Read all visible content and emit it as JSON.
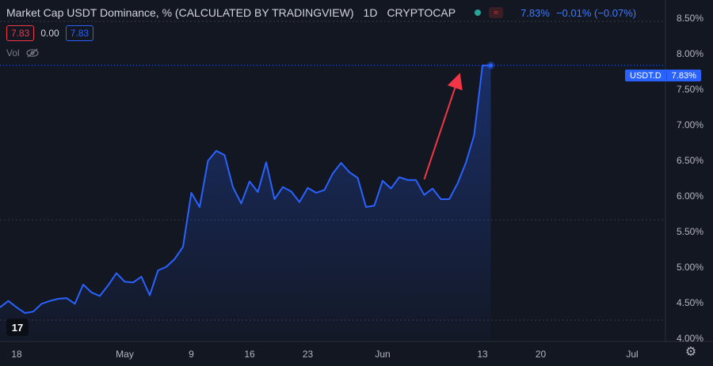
{
  "header": {
    "title": "Market Cap USDT Dominance, % (CALCULATED BY TRADINGVIEW)",
    "interval": "1D",
    "exchange": "CRYPTOCAP",
    "last_value": "7.83%",
    "change": "−0.01% (−0.07%)"
  },
  "ohlc_row": {
    "red_value": "7.83",
    "zero_value": "0.00",
    "blue_value": "7.83"
  },
  "volume_label": "Vol",
  "price_tag": {
    "symbol": "USDT.D",
    "value": "7.83%"
  },
  "colors": {
    "background": "#131722",
    "line": "#2962ff",
    "arrow": "#f23645",
    "grid_dots": "#363a45",
    "price_line": "#2962ff"
  },
  "icons": [
    "eye-slash-icon",
    "gear-icon",
    "tradingview-logo-icon",
    "flag-icon"
  ],
  "chart_data": {
    "type": "area",
    "title": "Market Cap USDT Dominance, % (CALCULATED BY TRADINGVIEW)",
    "xlabel": "",
    "ylabel": "",
    "y_unit": "%",
    "ylim": [
      3.95,
      8.75
    ],
    "y_ticks": [
      "4.00%",
      "4.50%",
      "5.00%",
      "5.50%",
      "6.00%",
      "6.50%",
      "7.00%",
      "7.50%",
      "8.00%",
      "8.50%"
    ],
    "x_ticks": [
      {
        "label": "18",
        "date": "2022-04-18"
      },
      {
        "label": "May",
        "date": "2022-05-01"
      },
      {
        "label": "9",
        "date": "2022-05-09"
      },
      {
        "label": "16",
        "date": "2022-05-16"
      },
      {
        "label": "23",
        "date": "2022-05-23"
      },
      {
        "label": "Jun",
        "date": "2022-06-01"
      },
      {
        "label": "13",
        "date": "2022-06-13"
      },
      {
        "label": "20",
        "date": "2022-06-20"
      },
      {
        "label": "Jul",
        "date": "2022-07-01"
      }
    ],
    "x_range": [
      "2022-04-16",
      "2022-07-05"
    ],
    "series": [
      {
        "x": [
          "2022-04-16",
          "2022-04-17",
          "2022-04-18",
          "2022-04-19",
          "2022-04-20",
          "2022-04-21",
          "2022-04-22",
          "2022-04-23",
          "2022-04-24",
          "2022-04-25",
          "2022-04-26",
          "2022-04-27",
          "2022-04-28",
          "2022-04-29",
          "2022-04-30",
          "2022-05-01",
          "2022-05-02",
          "2022-05-03",
          "2022-05-04",
          "2022-05-05",
          "2022-05-06",
          "2022-05-07",
          "2022-05-08",
          "2022-05-09",
          "2022-05-10",
          "2022-05-11",
          "2022-05-12",
          "2022-05-13",
          "2022-05-14",
          "2022-05-15",
          "2022-05-16",
          "2022-05-17",
          "2022-05-18",
          "2022-05-19",
          "2022-05-20",
          "2022-05-21",
          "2022-05-22",
          "2022-05-23",
          "2022-05-24",
          "2022-05-25",
          "2022-05-26",
          "2022-05-27",
          "2022-05-28",
          "2022-05-29",
          "2022-05-30",
          "2022-05-31",
          "2022-06-01",
          "2022-06-02",
          "2022-06-03",
          "2022-06-04",
          "2022-06-05",
          "2022-06-06",
          "2022-06-07",
          "2022-06-08",
          "2022-06-09",
          "2022-06-10",
          "2022-06-11",
          "2022-06-12",
          "2022-06-13",
          "2022-06-14"
        ],
        "values": [
          4.43,
          4.52,
          4.43,
          4.35,
          4.37,
          4.48,
          4.52,
          4.55,
          4.56,
          4.48,
          4.75,
          4.64,
          4.59,
          4.74,
          4.91,
          4.79,
          4.78,
          4.86,
          4.6,
          4.95,
          5.0,
          5.11,
          5.28,
          6.04,
          5.84,
          6.49,
          6.63,
          6.57,
          6.12,
          5.89,
          6.2,
          6.05,
          6.47,
          5.95,
          6.12,
          6.06,
          5.91,
          6.11,
          6.04,
          6.08,
          6.31,
          6.46,
          6.33,
          6.25,
          5.84,
          5.86,
          6.21,
          6.1,
          6.26,
          6.22,
          6.22,
          6.01,
          6.1,
          5.95,
          5.95,
          6.17,
          6.46,
          6.85,
          7.83,
          7.83
        ]
      }
    ],
    "last_price_line": 7.83,
    "dotted_levels": [
      8.45,
      5.66,
      4.25
    ],
    "annotation": {
      "type": "arrow",
      "from": {
        "x": "2022-06-06",
        "y": 6.23
      },
      "to": {
        "x": "2022-06-10",
        "y": 7.62
      }
    },
    "grid": false,
    "legend": "none"
  }
}
